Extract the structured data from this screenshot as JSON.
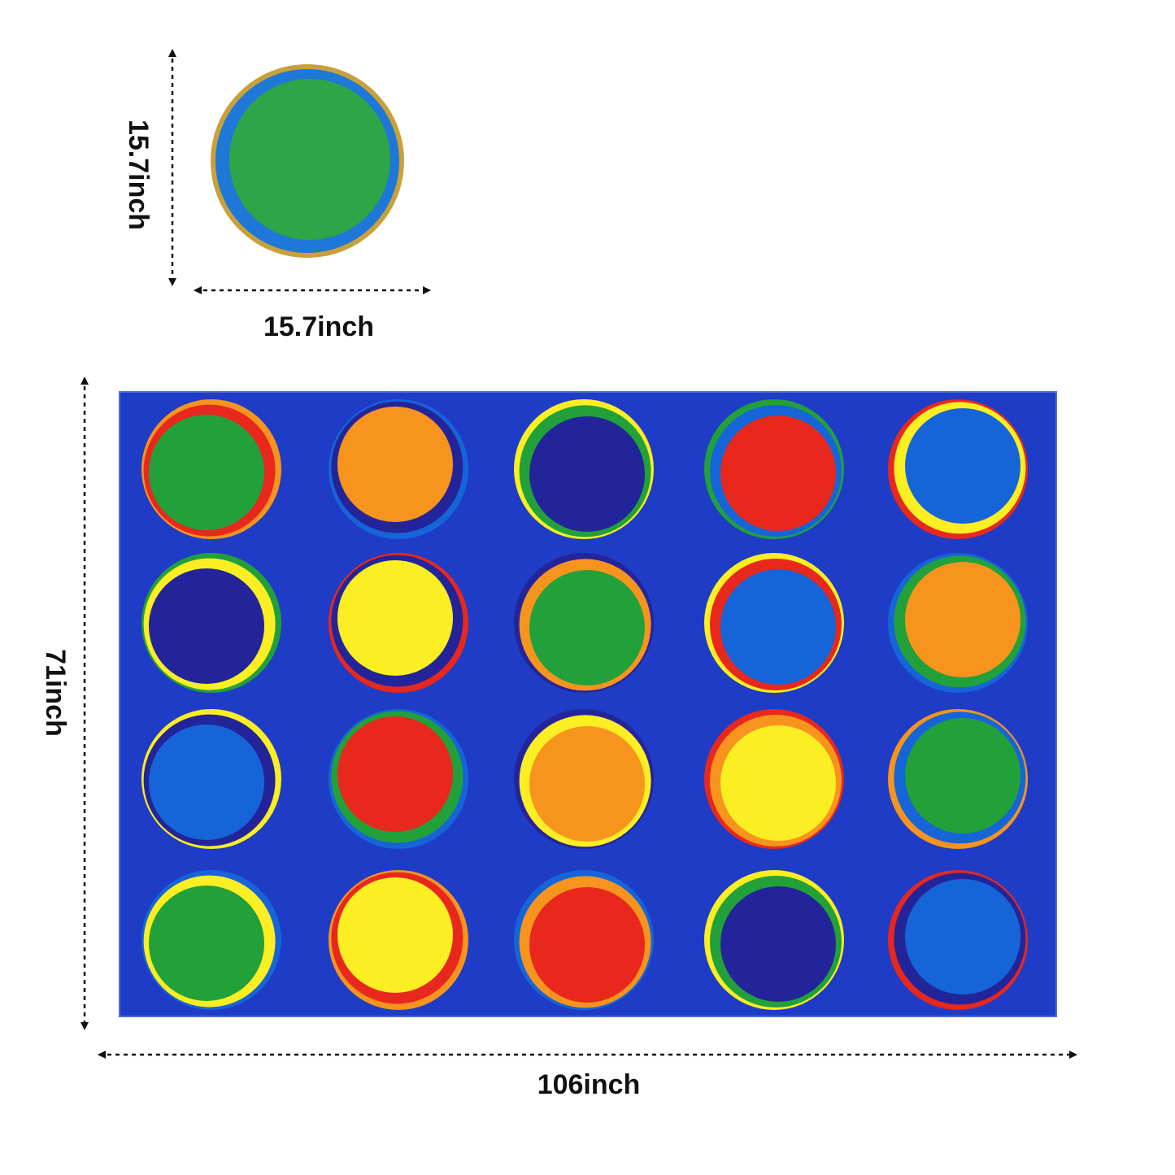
{
  "dimensions": {
    "small_width_label": "15.7inch",
    "small_height_label": "15.7inch",
    "large_height_label": "71inch",
    "large_width_label": "106inch"
  },
  "colors": {
    "rug_background": "#1f3cc6",
    "dark_navy": "#24249a",
    "medium_blue": "#1565d8",
    "green": "#22a13a",
    "orange": "#f7941d",
    "red": "#e8281c",
    "yellow": "#fbee23",
    "tan_border": "#c9a13a",
    "dim_line": "#111111"
  },
  "circle_mat": {
    "outer": "tan-border",
    "ring": "medium-blue",
    "center": "green"
  },
  "rug": {
    "rows": 4,
    "columns": 5,
    "spots": [
      {
        "center": "green",
        "ring1": "red",
        "ring2": "orange"
      },
      {
        "center": "orange",
        "ring1": "dark-navy",
        "ring2": "medium-blue"
      },
      {
        "center": "dark-navy",
        "ring1": "green",
        "ring2": "yellow"
      },
      {
        "center": "red",
        "ring1": "medium-blue",
        "ring2": "green"
      },
      {
        "center": "medium-blue",
        "ring1": "yellow",
        "ring2": "red"
      },
      {
        "center": "dark-navy",
        "ring1": "yellow",
        "ring2": "green"
      },
      {
        "center": "yellow",
        "ring1": "dark-navy",
        "ring2": "red"
      },
      {
        "center": "green",
        "ring1": "orange",
        "ring2": "dark-navy"
      },
      {
        "center": "medium-blue",
        "ring1": "red",
        "ring2": "yellow"
      },
      {
        "center": "orange",
        "ring1": "green",
        "ring2": "medium-blue"
      },
      {
        "center": "medium-blue",
        "ring1": "dark-navy",
        "ring2": "yellow"
      },
      {
        "center": "red",
        "ring1": "green",
        "ring2": "medium-blue"
      },
      {
        "center": "orange",
        "ring1": "yellow",
        "ring2": "dark-navy"
      },
      {
        "center": "yellow",
        "ring1": "orange",
        "ring2": "red"
      },
      {
        "center": "green",
        "ring1": "medium-blue",
        "ring2": "orange"
      },
      {
        "center": "green",
        "ring1": "yellow",
        "ring2": "medium-blue"
      },
      {
        "center": "yellow",
        "ring1": "red",
        "ring2": "orange"
      },
      {
        "center": "red",
        "ring1": "orange",
        "ring2": "medium-blue"
      },
      {
        "center": "dark-navy",
        "ring1": "green",
        "ring2": "yellow"
      },
      {
        "center": "medium-blue",
        "ring1": "dark-navy",
        "ring2": "red"
      }
    ]
  }
}
